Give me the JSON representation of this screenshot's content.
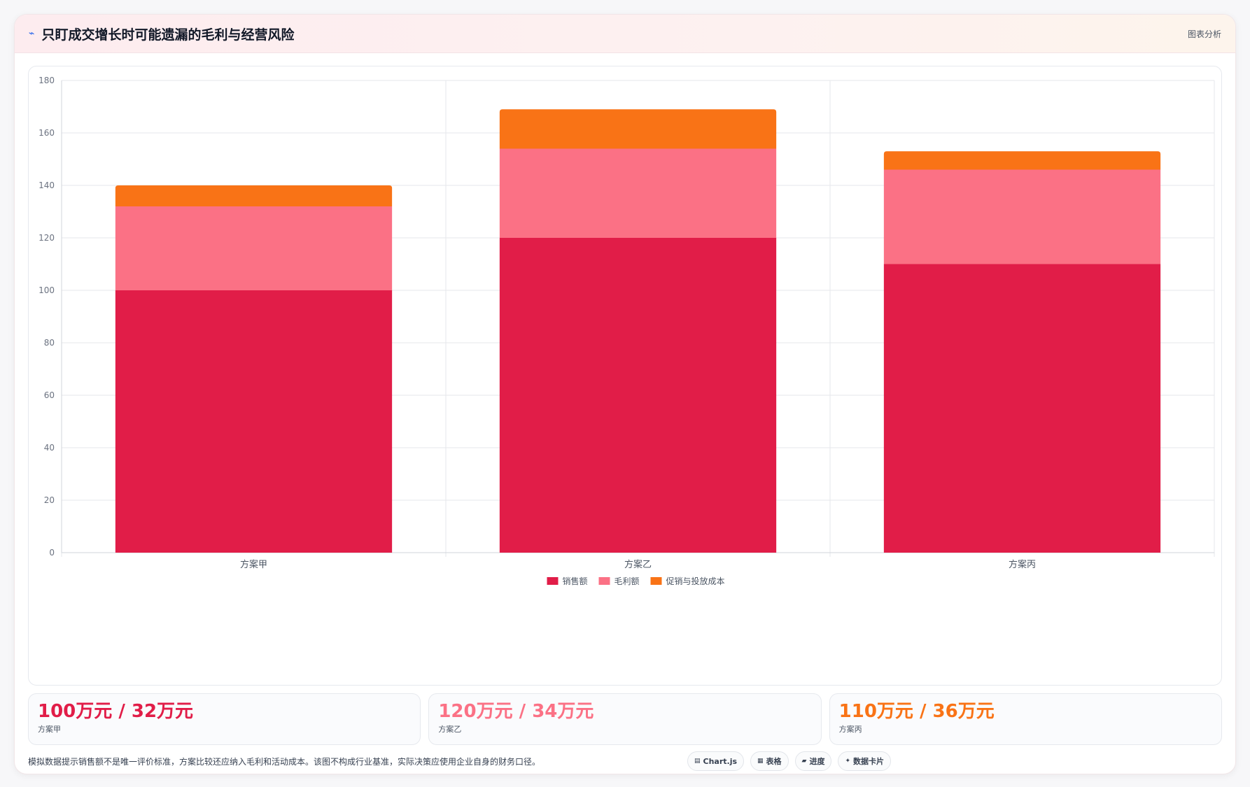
{
  "header": {
    "icon": "trend-icon",
    "title": "只盯成交增长时可能遗漏的毛利与经营风险",
    "tag": "图表分析"
  },
  "chart_data": {
    "type": "bar",
    "stacked": true,
    "categories": [
      "方案甲",
      "方案乙",
      "方案丙"
    ],
    "series": [
      {
        "name": "销售额",
        "values": [
          100,
          120,
          110
        ],
        "color": "#e11d48"
      },
      {
        "name": "毛利额",
        "values": [
          32,
          34,
          36
        ],
        "color": "#fb7185"
      },
      {
        "name": "促销与投放成本",
        "values": [
          8,
          15,
          7
        ],
        "color": "#f97316"
      }
    ],
    "ylim": [
      0,
      180
    ],
    "yticks": [
      0,
      20,
      40,
      60,
      80,
      100,
      120,
      140,
      160,
      180
    ],
    "grid": true,
    "legend": "bottom"
  },
  "stats": [
    {
      "value": "100万元 / 32万元",
      "label": "方案甲",
      "color": "#e11d48"
    },
    {
      "value": "120万元 / 34万元",
      "label": "方案乙",
      "color": "#fb7185"
    },
    {
      "value": "110万元 / 36万元",
      "label": "方案丙",
      "color": "#f97316"
    }
  ],
  "footer": {
    "note": "模拟数据提示销售额不是唯一评价标准，方案比较还应纳入毛利和活动成本。该图不构成行业基准，实际决策应使用企业自身的财务口径。",
    "chips": [
      {
        "icon": "chart-icon",
        "glyph": "▤",
        "label": "Chart.js"
      },
      {
        "icon": "table-icon",
        "glyph": "▦",
        "label": "表格"
      },
      {
        "icon": "progress-icon",
        "glyph": "▰",
        "label": "进度"
      },
      {
        "icon": "sparkle-icon",
        "glyph": "✦",
        "label": "数据卡片"
      }
    ]
  }
}
